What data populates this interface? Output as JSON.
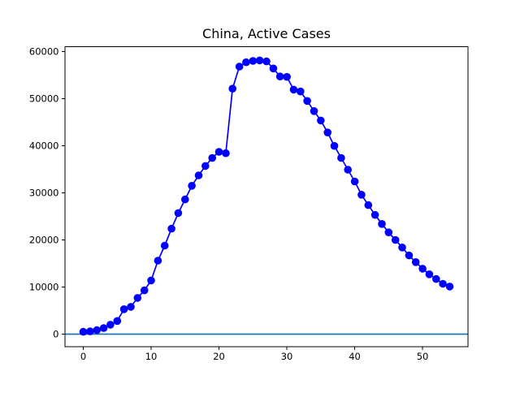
{
  "chart_data": {
    "type": "line",
    "title": "China, Active Cases",
    "xlabel": "",
    "ylabel": "",
    "x": [
      0,
      1,
      2,
      3,
      4,
      5,
      6,
      7,
      8,
      9,
      10,
      11,
      12,
      13,
      14,
      15,
      16,
      17,
      18,
      19,
      20,
      21,
      22,
      23,
      24,
      25,
      26,
      27,
      28,
      29,
      30,
      31,
      32,
      33,
      34,
      35,
      36,
      37,
      38,
      39,
      40,
      41,
      42,
      43,
      44,
      45,
      46,
      47,
      48,
      49,
      50,
      51,
      52,
      53,
      54
    ],
    "series": [
      {
        "name": "active_cases",
        "values": [
          500,
          600,
          850,
          1300,
          2000,
          2800,
          5300,
          5800,
          7700,
          9300,
          11400,
          15600,
          18800,
          22400,
          25700,
          28600,
          31500,
          33700,
          35700,
          37400,
          38700,
          38400,
          52100,
          56800,
          57700,
          58000,
          58100,
          57900,
          56400,
          54700,
          54600,
          51900,
          51500,
          49500,
          47350,
          45350,
          42800,
          39950,
          37400,
          34900,
          32400,
          29600,
          27400,
          25300,
          23400,
          21600,
          20000,
          18400,
          16700,
          15300,
          13900,
          12700,
          11700,
          10700,
          10100
        ]
      }
    ],
    "xticks": [
      0,
      10,
      20,
      30,
      40,
      50
    ],
    "yticks": [
      0,
      10000,
      20000,
      30000,
      40000,
      50000,
      60000
    ],
    "xlim": [
      -2.7,
      56.7
    ],
    "ylim": [
      -2700,
      61000
    ],
    "grid": false,
    "legend": false,
    "baseline_y": 0,
    "marker": "circle",
    "colors": {
      "line": "#0000ff",
      "marker": "#0000ff",
      "baseline": "#1f77b4",
      "axis": "#000000",
      "background": "#ffffff"
    }
  }
}
